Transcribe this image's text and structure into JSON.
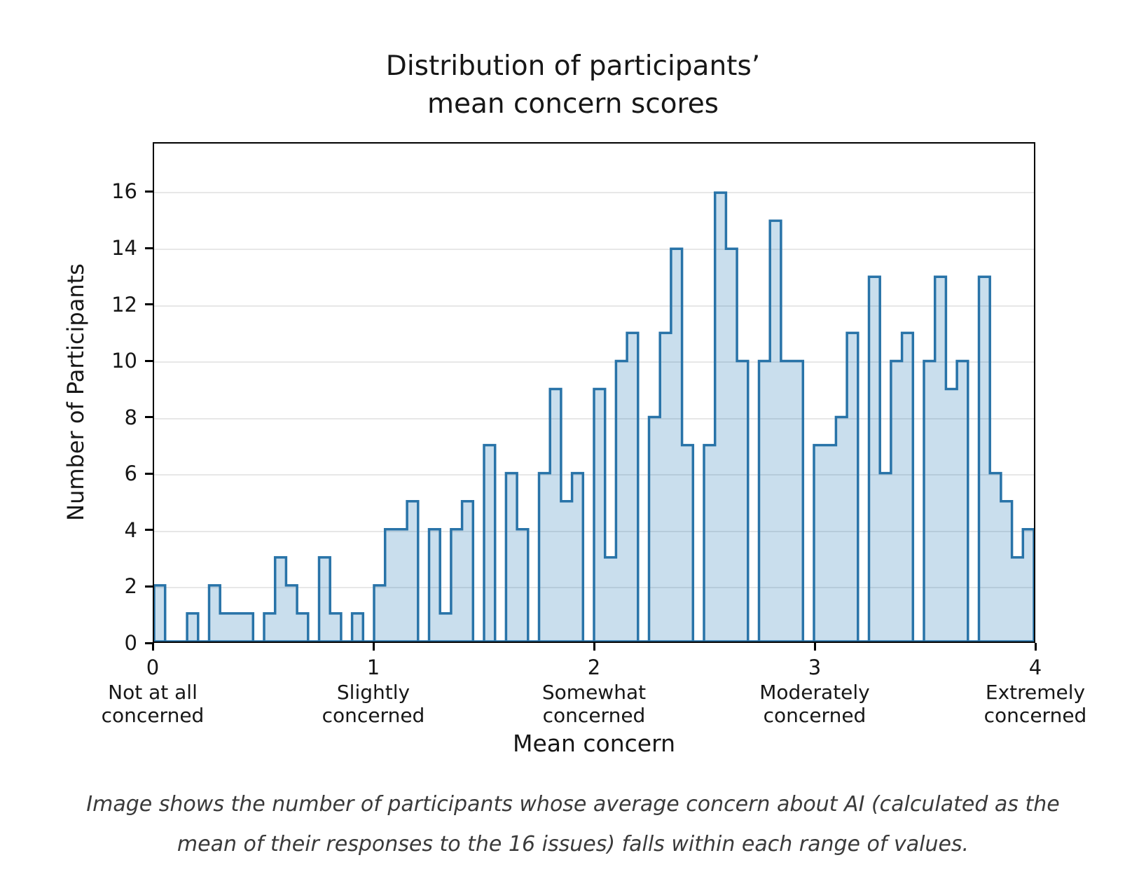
{
  "title": {
    "line1": "Distribution of participants’",
    "line2": "mean concern scores"
  },
  "chart_data": {
    "type": "bar",
    "subtype": "step-filled-histogram",
    "title": "Distribution of participants’ mean concern scores",
    "xlabel": "Mean concern",
    "ylabel": "Number of Participants",
    "xlim": [
      0,
      4
    ],
    "ylim": [
      0,
      17.75
    ],
    "grid": "horizontal",
    "legend": "none",
    "bin_start": 0,
    "bin_width": 0.05,
    "counts": [
      2,
      0,
      0,
      1,
      0,
      2,
      1,
      1,
      1,
      0,
      1,
      3,
      2,
      1,
      0,
      3,
      1,
      0,
      1,
      0,
      2,
      4,
      4,
      5,
      0,
      4,
      1,
      4,
      5,
      0,
      7,
      0,
      6,
      4,
      0,
      6,
      9,
      5,
      6,
      0,
      9,
      3,
      10,
      11,
      0,
      8,
      11,
      14,
      7,
      0,
      7,
      16,
      14,
      10,
      0,
      10,
      15,
      10,
      10,
      0,
      7,
      7,
      8,
      11,
      0,
      13,
      6,
      10,
      11,
      0,
      10,
      13,
      9,
      10,
      0,
      13,
      6,
      5,
      3,
      4
    ],
    "yticks": [
      0,
      2,
      4,
      6,
      8,
      10,
      12,
      14,
      16
    ],
    "xticks": [
      {
        "value": 0,
        "label": "0",
        "sublabel": [
          "Not at all",
          "concerned"
        ]
      },
      {
        "value": 1,
        "label": "1",
        "sublabel": [
          "Slightly",
          "concerned"
        ]
      },
      {
        "value": 2,
        "label": "2",
        "sublabel": [
          "Somewhat",
          "concerned"
        ]
      },
      {
        "value": 3,
        "label": "3",
        "sublabel": [
          "Moderately",
          "concerned"
        ]
      },
      {
        "value": 4,
        "label": "4",
        "sublabel": [
          "Extremely",
          "concerned"
        ]
      }
    ],
    "colors": {
      "fill": "rgba(31,119,180,0.24)",
      "edge": "#2873a8",
      "grid": "#e7e7e7",
      "axis": "#000000",
      "text": "#171717"
    }
  },
  "caption": {
    "line1": "Image shows the number of participants whose average concern about AI (calculated as the",
    "line2": "mean of their responses to the 16 issues) falls within each range of values."
  }
}
